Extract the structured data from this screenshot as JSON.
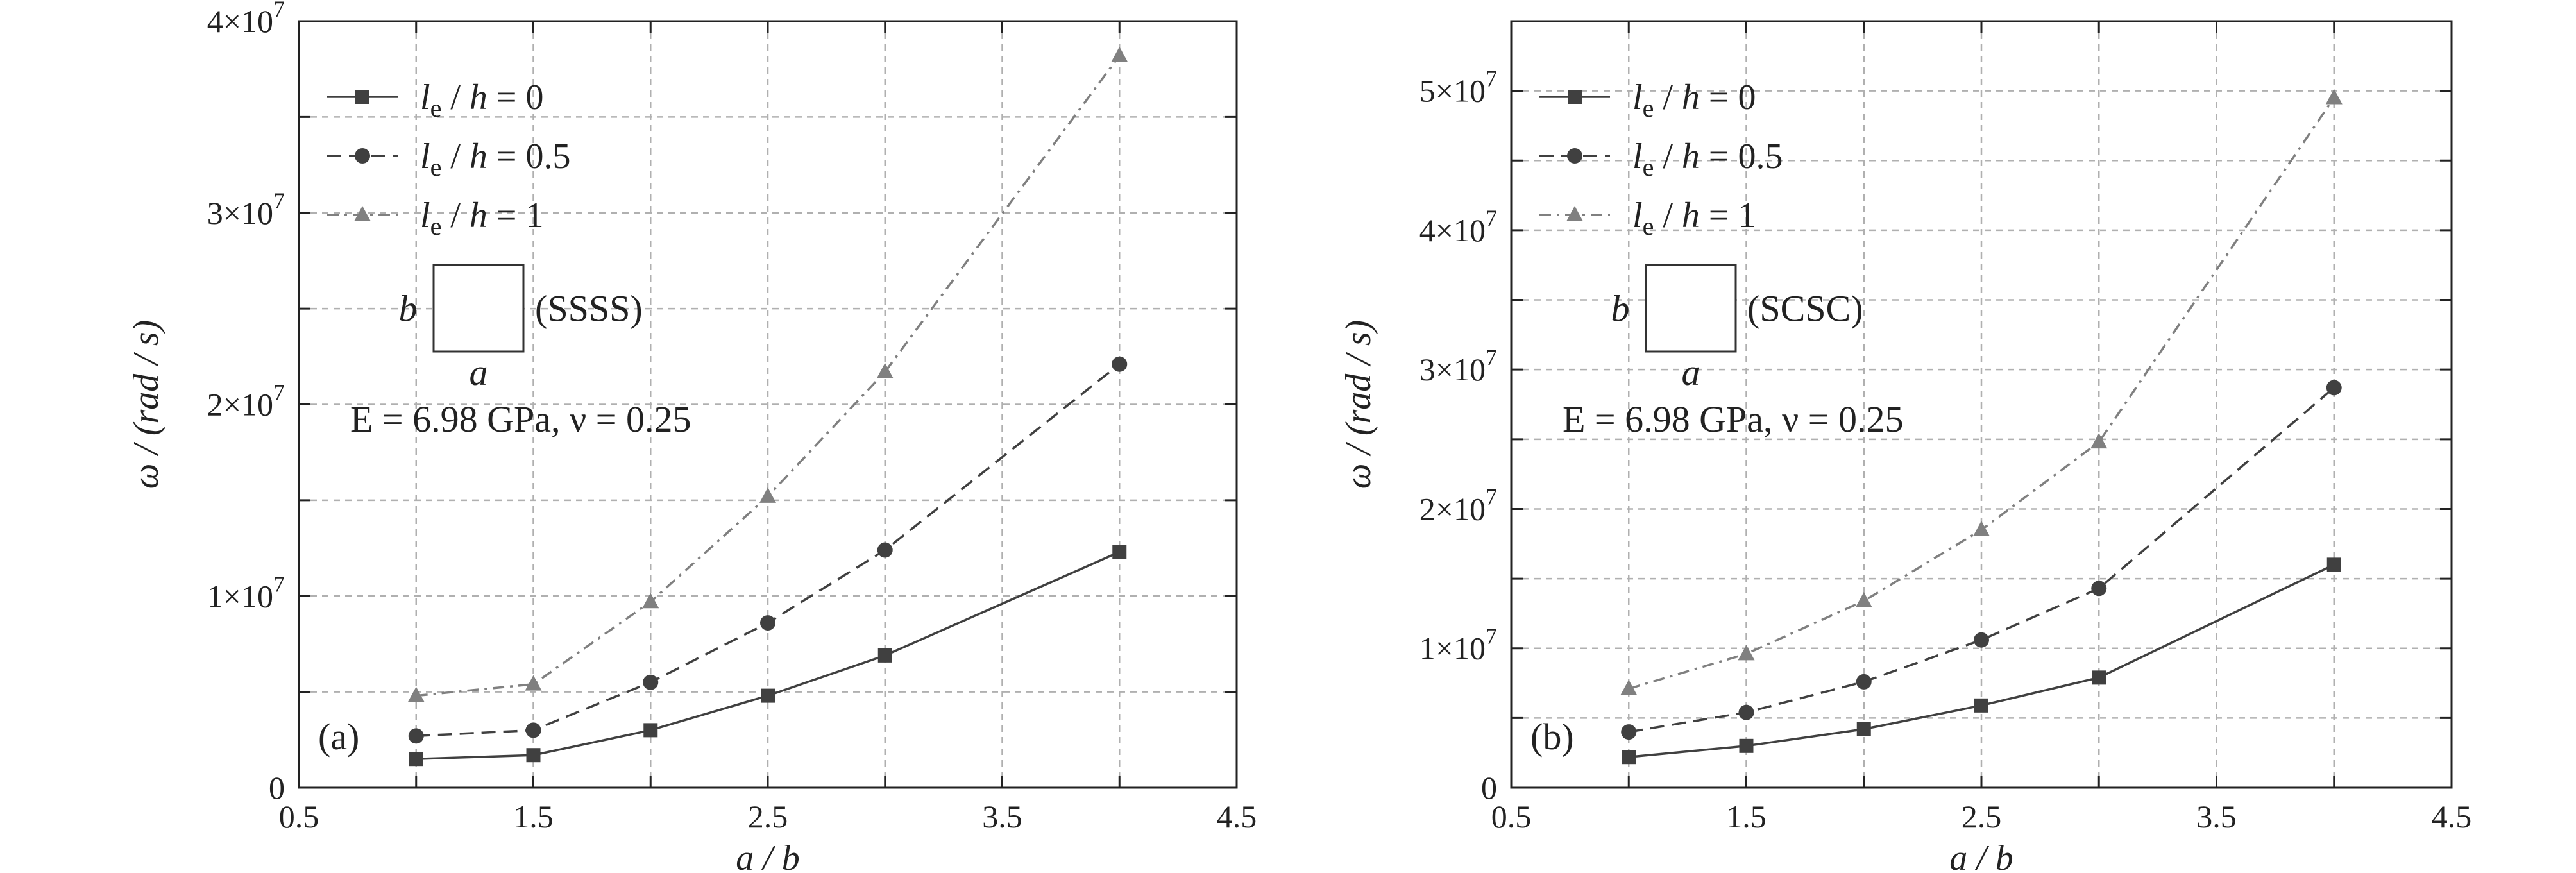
{
  "chart_data": [
    {
      "type": "line",
      "panel_label": "(a)",
      "x": [
        1,
        1.5,
        2,
        2.5,
        3,
        4
      ],
      "series": [
        {
          "name": "l_e/h=0",
          "values": [
            1500000.0,
            1700000.0,
            3000000.0,
            4800000.0,
            6900000.0,
            12300000.0
          ],
          "color": "#404040",
          "marker": "square",
          "dash": "solid"
        },
        {
          "name": "l_e/h=0.5",
          "values": [
            2700000.0,
            3000000.0,
            5500000.0,
            8600000.0,
            12400000.0,
            22100000.0
          ],
          "color": "#404040",
          "marker": "circle",
          "dash": "dashed"
        },
        {
          "name": "l_e/h=1",
          "values": [
            4800000.0,
            5400000.0,
            9700000.0,
            15200000.0,
            21700000.0,
            38200000.0
          ],
          "color": "#808080",
          "marker": "triangle",
          "dash": "dashdot"
        }
      ],
      "xlim": [
        0.5,
        4.5
      ],
      "ylim": [
        0,
        40000000
      ],
      "xticks": [
        {
          "v": 0.5,
          "label": "0.5"
        },
        {
          "v": 1.5,
          "label": "1.5"
        },
        {
          "v": 2.5,
          "label": "2.5"
        },
        {
          "v": 3.5,
          "label": "3.5"
        },
        {
          "v": 4.5,
          "label": "4.5"
        }
      ],
      "yticks": [
        {
          "v": 0,
          "base": "0",
          "exp": ""
        },
        {
          "v": 10000000,
          "base": "1×10",
          "exp": "7"
        },
        {
          "v": 20000000,
          "base": "2×10",
          "exp": "7"
        },
        {
          "v": 30000000,
          "base": "3×10",
          "exp": "7"
        },
        {
          "v": 40000000,
          "base": "4×10",
          "exp": "7"
        }
      ],
      "xlabel": "a / b",
      "ylabel": "ω / (rad / s)",
      "boundary_label": "(SSSS)",
      "plate_side_b": "b",
      "plate_side_a": "a",
      "material_text": "E = 6.98 GPa, ν = 0.25",
      "grid": true,
      "legend_position": "top-left"
    },
    {
      "type": "line",
      "panel_label": "(b)",
      "x": [
        1,
        1.5,
        2,
        2.5,
        3,
        4
      ],
      "series": [
        {
          "name": "l_e/h=0",
          "values": [
            2200000.0,
            3000000.0,
            4200000.0,
            5900000.0,
            7900000.0,
            16000000.0
          ],
          "color": "#404040",
          "marker": "square",
          "dash": "solid"
        },
        {
          "name": "l_e/h=0.5",
          "values": [
            4000000.0,
            5400000.0,
            7600000.0,
            10600000.0,
            14300000.0,
            28700000.0
          ],
          "color": "#404040",
          "marker": "circle",
          "dash": "dashed"
        },
        {
          "name": "l_e/h=1",
          "values": [
            7100000.0,
            9600000.0,
            13400000.0,
            18500000.0,
            24800000.0,
            49500000.0
          ],
          "color": "#808080",
          "marker": "triangle",
          "dash": "dashdot"
        }
      ],
      "xlim": [
        0.5,
        4.5
      ],
      "ylim": [
        0,
        55000000
      ],
      "xticks": [
        {
          "v": 0.5,
          "label": "0.5"
        },
        {
          "v": 1.5,
          "label": "1.5"
        },
        {
          "v": 2.5,
          "label": "2.5"
        },
        {
          "v": 3.5,
          "label": "3.5"
        },
        {
          "v": 4.5,
          "label": "4.5"
        }
      ],
      "yticks": [
        {
          "v": 0,
          "base": "0",
          "exp": ""
        },
        {
          "v": 10000000,
          "base": "1×10",
          "exp": "7"
        },
        {
          "v": 20000000,
          "base": "2×10",
          "exp": "7"
        },
        {
          "v": 30000000,
          "base": "3×10",
          "exp": "7"
        },
        {
          "v": 40000000,
          "base": "4×10",
          "exp": "7"
        },
        {
          "v": 50000000,
          "base": "5×10",
          "exp": "7"
        }
      ],
      "xlabel": "a / b",
      "ylabel": "ω / (rad / s)",
      "boundary_label": "(SCSC)",
      "plate_side_b": "b",
      "plate_side_a": "a",
      "material_text": "E = 6.98 GPa, ν = 0.25",
      "grid": true,
      "legend_position": "top-left"
    }
  ]
}
